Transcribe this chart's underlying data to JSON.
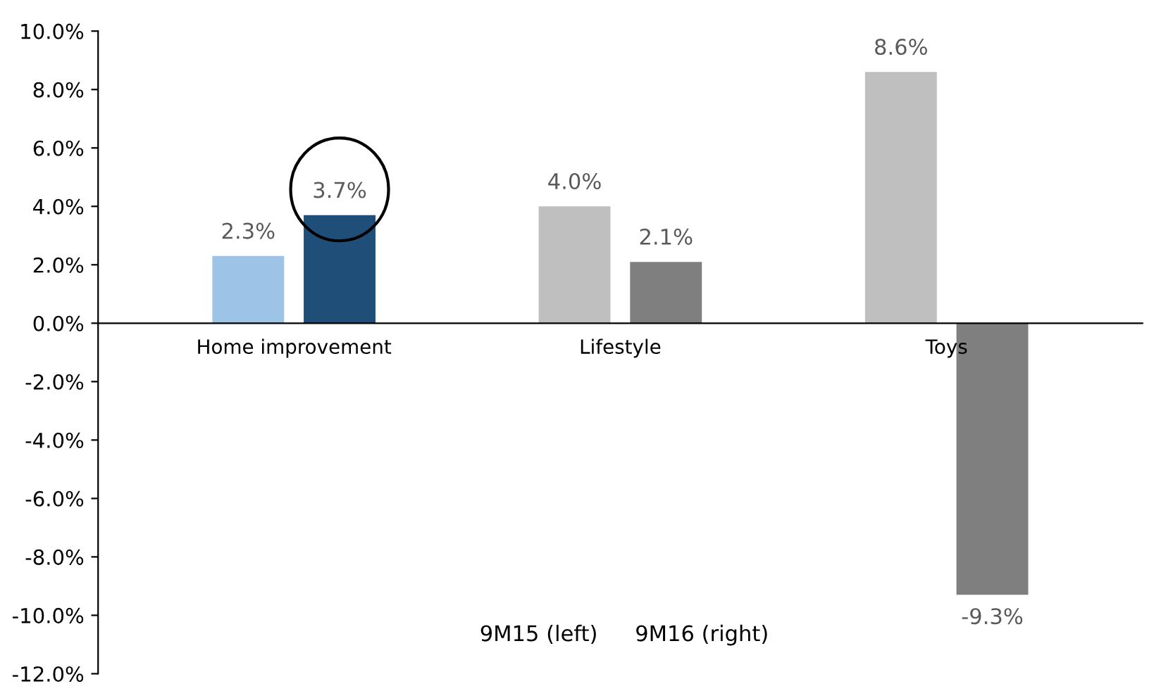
{
  "chart_data": {
    "type": "bar",
    "categories": [
      "Home improvement",
      "Lifestyle",
      "Toys"
    ],
    "series": [
      {
        "colors": [
          "#9dc3e6",
          "#bfbfbf",
          "#bfbfbf"
        ],
        "values": [
          2.3,
          4.0,
          8.6
        ],
        "value_labels": [
          "2.3%",
          "4.0%",
          "8.6%"
        ]
      },
      {
        "colors": [
          "#1f4e79",
          "#7f7f7f",
          "#7f7f7f"
        ],
        "values": [
          3.7,
          2.1,
          -9.3
        ],
        "value_labels": [
          "3.7%",
          "2.1%",
          "-9.3%"
        ]
      }
    ],
    "ylim": [
      -12,
      10
    ],
    "yticks": [
      {
        "value": -12,
        "label": "-12.0%"
      },
      {
        "value": -10,
        "label": "-10.0%"
      },
      {
        "value": -8,
        "label": "-8.0%"
      },
      {
        "value": -6,
        "label": "-6.0%"
      },
      {
        "value": -4,
        "label": "-4.0%"
      },
      {
        "value": -2,
        "label": "-2.0%"
      },
      {
        "value": 0,
        "label": "0.0%"
      },
      {
        "value": 2,
        "label": "2.0%"
      },
      {
        "value": 4,
        "label": "4.0%"
      },
      {
        "value": 6,
        "label": "6.0%"
      },
      {
        "value": 8,
        "label": "8.0%"
      },
      {
        "value": 10,
        "label": "10.0%"
      }
    ],
    "annotations": [
      "9M15 (left)",
      "9M16 (right)"
    ],
    "grid": false,
    "legend": false
  }
}
